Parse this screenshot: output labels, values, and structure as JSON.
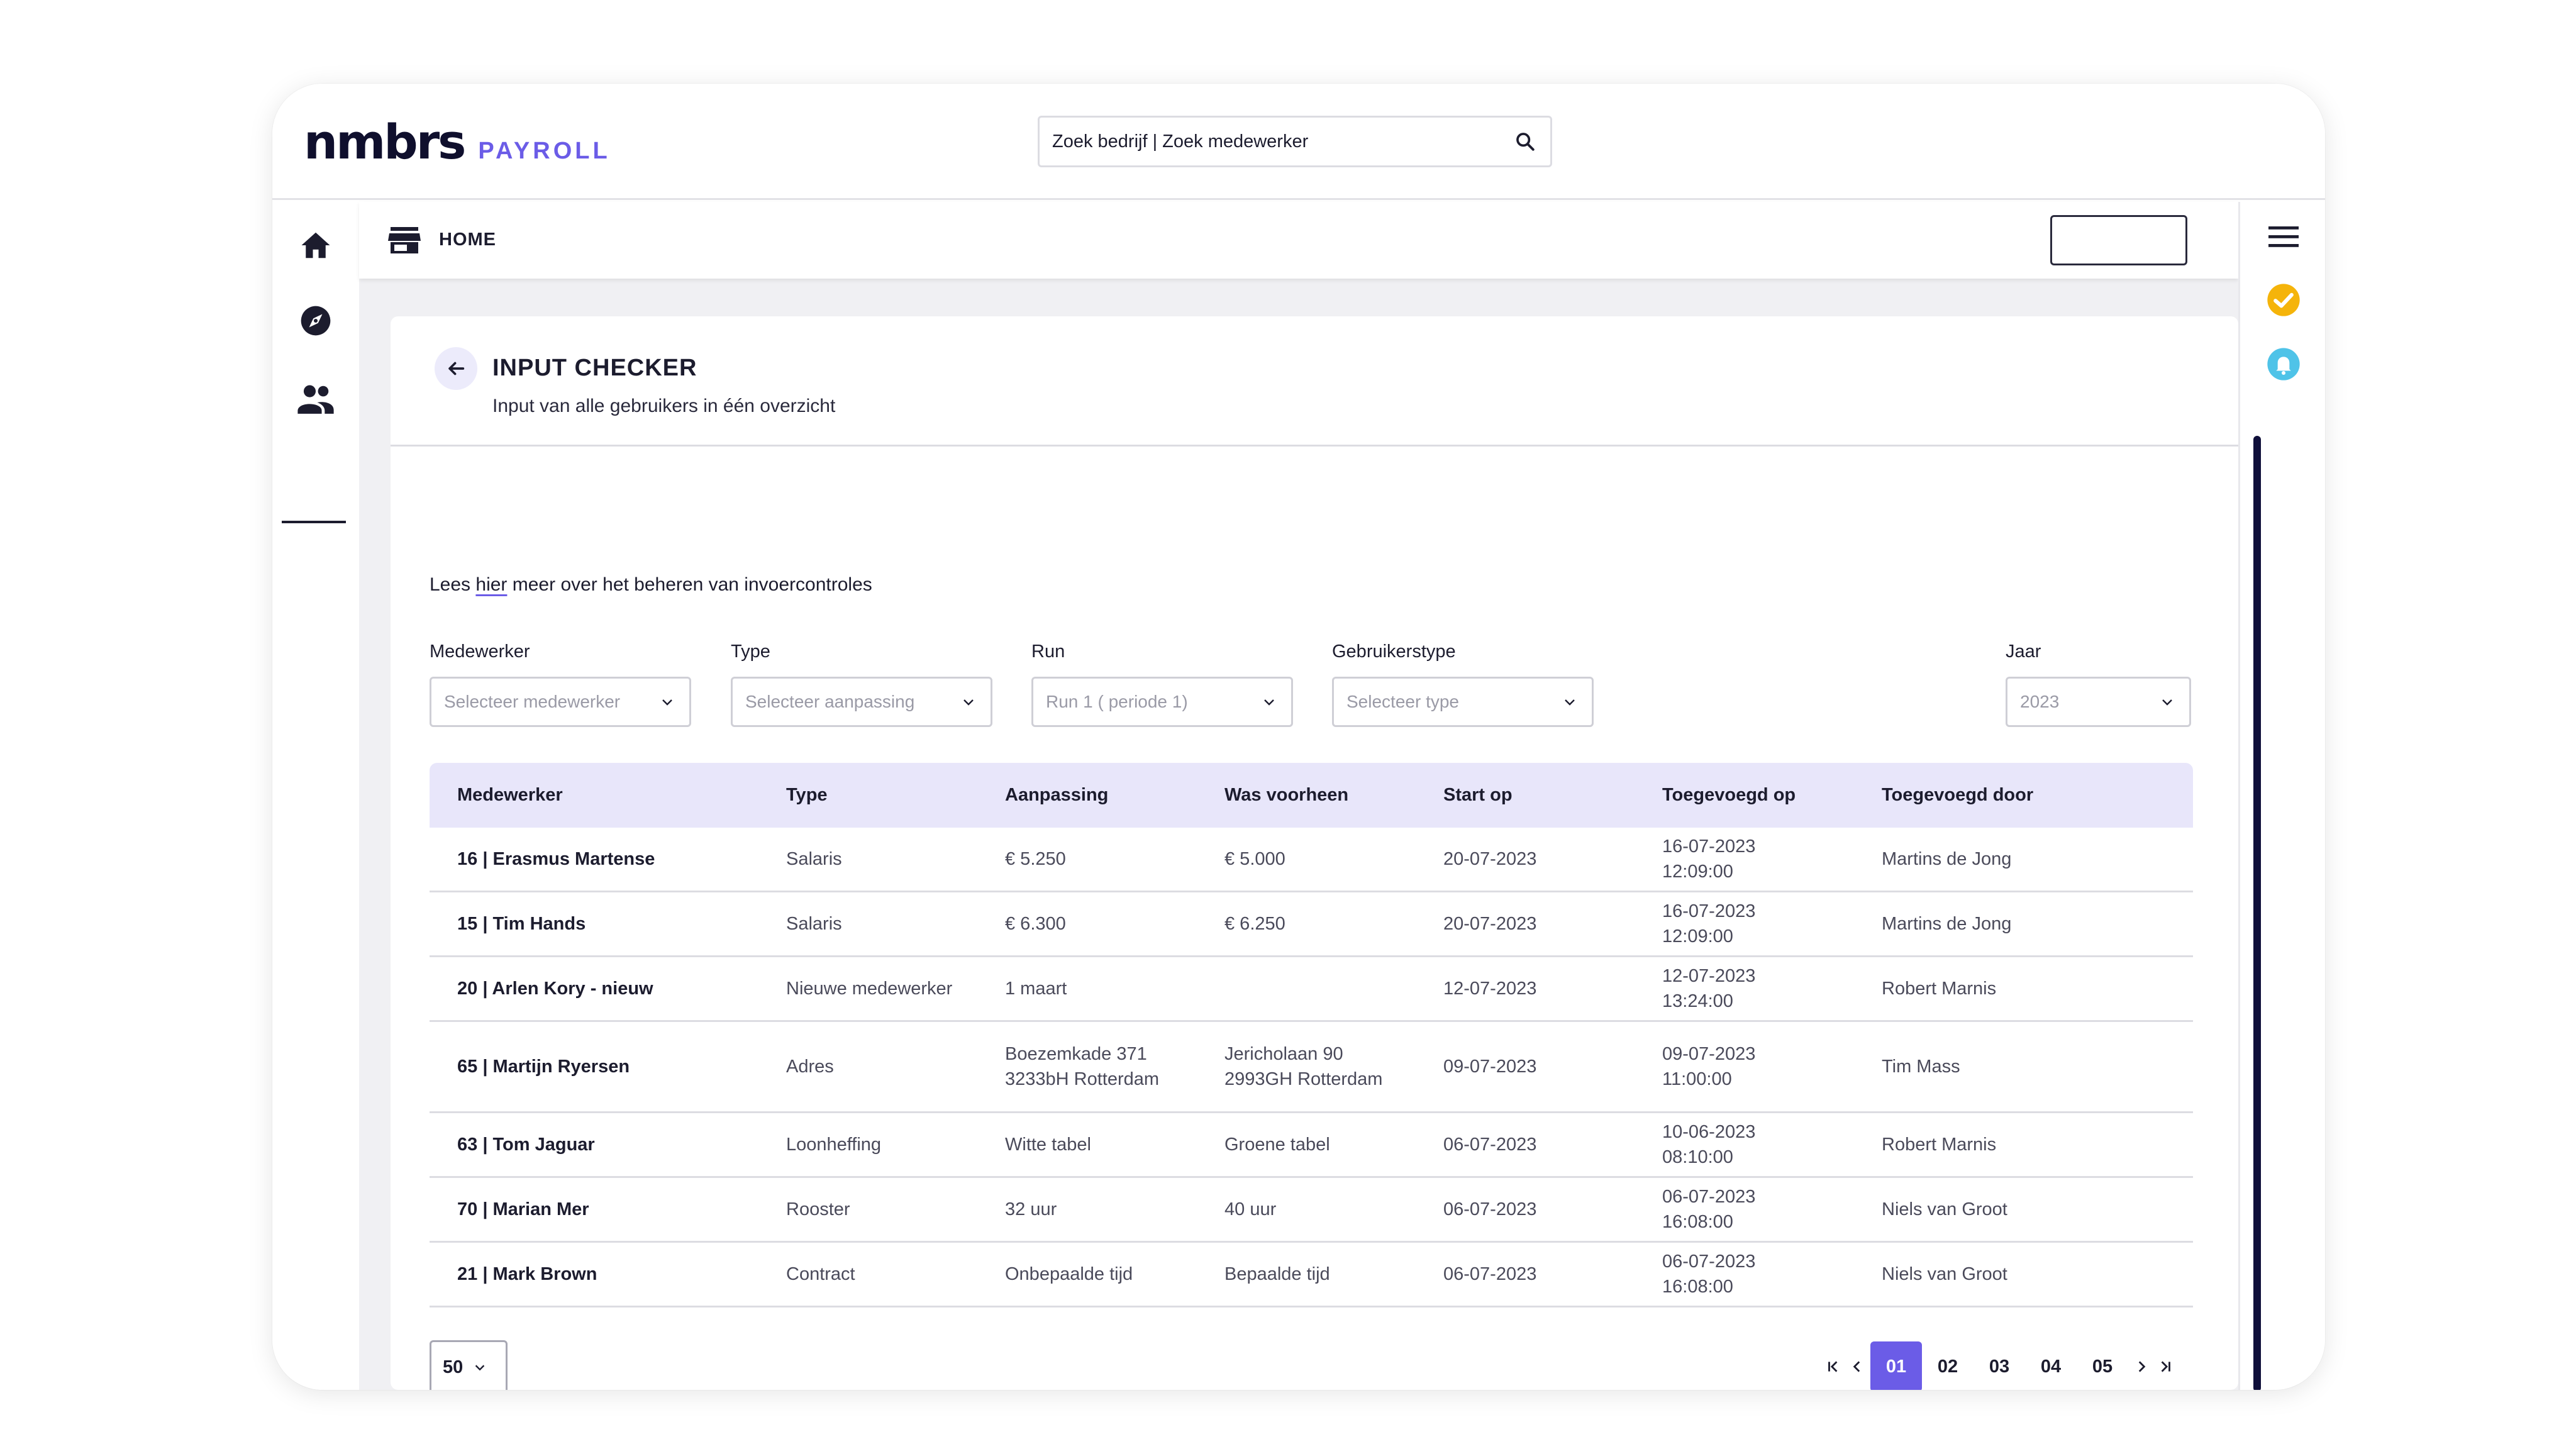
{
  "header": {
    "logo_main": "nmbrs",
    "logo_sub": "PAYROLL",
    "search_text": "Zoek bedrijf | Zoek medewerker"
  },
  "subnav": {
    "label": "HOME"
  },
  "page": {
    "title": "INPUT CHECKER",
    "subtitle": "Input van alle gebruikers in één overzicht",
    "info_prefix": "Lees ",
    "info_link": "hier",
    "info_suffix": " meer over het beheren van invoercontroles"
  },
  "filters": {
    "medewerker": {
      "label": "Medewerker",
      "value": "Selecteer medewerker"
    },
    "type": {
      "label": "Type",
      "value": "Selecteer aanpassing"
    },
    "run": {
      "label": "Run",
      "value": "Run 1 ( periode 1)"
    },
    "gebruikerstype": {
      "label": "Gebruikerstype",
      "value": "Selecteer type"
    },
    "jaar": {
      "label": "Jaar",
      "value": "2023"
    }
  },
  "table": {
    "headers": [
      "Medewerker",
      "Type",
      "Aanpassing",
      "Was voorheen",
      "Start op",
      "Toegevoegd op",
      "Toegevoegd door"
    ],
    "rows": [
      {
        "medewerker": "16 | Erasmus Martense",
        "type": "Salaris",
        "aanpassing": [
          "€ 5.250"
        ],
        "was": [
          "€ 5.000"
        ],
        "start": "20-07-2023",
        "toegevoegd_op": [
          "16-07-2023",
          "12:09:00"
        ],
        "door": "Martins de Jong"
      },
      {
        "medewerker": "15 | Tim Hands",
        "type": "Salaris",
        "aanpassing": [
          "€ 6.300"
        ],
        "was": [
          "€ 6.250"
        ],
        "start": "20-07-2023",
        "toegevoegd_op": [
          "16-07-2023",
          "12:09:00"
        ],
        "door": "Martins de Jong"
      },
      {
        "medewerker": "20 | Arlen Kory - nieuw",
        "type": "Nieuwe medewerker",
        "aanpassing": [
          "1 maart"
        ],
        "was": [],
        "start": "12-07-2023",
        "toegevoegd_op": [
          "12-07-2023",
          "13:24:00"
        ],
        "door": "Robert Marnis"
      },
      {
        "medewerker": "65 | Martijn Ryersen",
        "type": "Adres",
        "aanpassing": [
          "Boezemkade 371",
          "3233bH Rotterdam"
        ],
        "was": [
          "Jericholaan 90",
          "2993GH Rotterdam"
        ],
        "start": "09-07-2023",
        "toegevoegd_op": [
          "09-07-2023",
          "11:00:00"
        ],
        "door": "Tim Mass"
      },
      {
        "medewerker": "63 | Tom Jaguar",
        "type": "Loonheffing",
        "aanpassing": [
          "Witte tabel"
        ],
        "was": [
          "Groene tabel"
        ],
        "start": "06-07-2023",
        "toegevoegd_op": [
          "10-06-2023",
          "08:10:00"
        ],
        "door": "Robert Marnis"
      },
      {
        "medewerker": "70 | Marian Mer",
        "type": "Rooster",
        "aanpassing": [
          "32 uur"
        ],
        "was": [
          "40 uur"
        ],
        "start": "06-07-2023",
        "toegevoegd_op": [
          "06-07-2023",
          "16:08:00"
        ],
        "door": "Niels van Groot"
      },
      {
        "medewerker": "21 | Mark Brown",
        "type": "Contract",
        "aanpassing": [
          "Onbepaalde tijd"
        ],
        "was": [
          "Bepaalde tijd"
        ],
        "start": "06-07-2023",
        "toegevoegd_op": [
          "06-07-2023",
          "16:08:00"
        ],
        "door": "Niels van Groot"
      }
    ]
  },
  "footer": {
    "per_page": "50",
    "pages": [
      "01",
      "02",
      "03",
      "04",
      "05"
    ],
    "active_page": "01"
  },
  "icons": {
    "left_rail": [
      "home-icon",
      "compass-icon",
      "people-icon"
    ],
    "right_rail": [
      "menu-icon",
      "check-circle-icon",
      "bell-icon"
    ],
    "subnav": "store-icon"
  },
  "colors": {
    "accent": "#6b5ce7",
    "header_row": "#e8e6fa",
    "check": "#f5b40a",
    "bell": "#4fc3e8",
    "scroll": "#0f0f3a"
  }
}
